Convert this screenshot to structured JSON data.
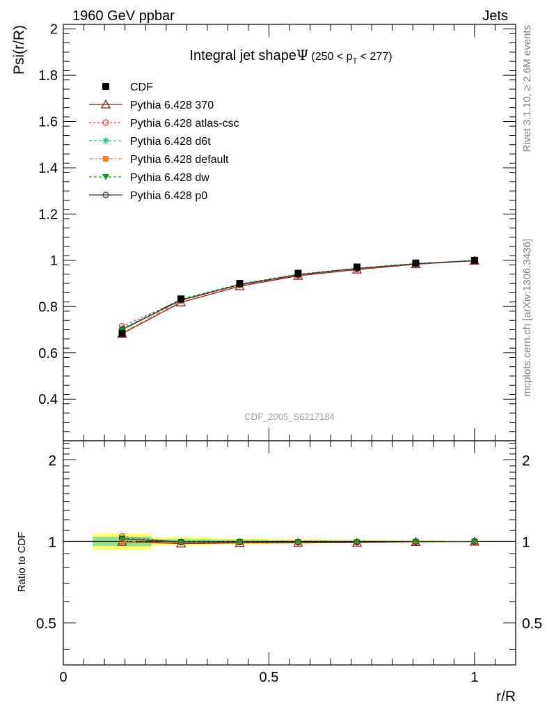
{
  "header": {
    "left": "1960 GeV ppbar",
    "right": "Jets"
  },
  "side_labels": {
    "rivet": "Rivet 3.1.10, ≥ 2.6M events",
    "mcplots": "mcplots.cern.ch [arXiv:1306.3436]"
  },
  "chart_data": [
    {
      "type": "line",
      "title_prefix": "Integral jet shape",
      "title_symbol": "Ψ",
      "title_range": "(250 < p",
      "title_range_sub": "T",
      "title_range_end": " < 277)",
      "ylabel": "Psi(r/R)",
      "xlim": [
        0,
        1.1
      ],
      "ylim": [
        0.22,
        2.02
      ],
      "yticks": [
        0.4,
        0.6,
        0.8,
        1,
        1.2,
        1.4,
        1.6,
        1.8,
        2
      ],
      "ytick_labels": [
        "0.4",
        "0.6",
        "0.8",
        "1",
        "1.2",
        "1.4",
        "1.6",
        "1.8",
        "2"
      ],
      "watermark": "CDF_2005_S6217184",
      "legend_position": "top-left",
      "x": [
        0.143,
        0.286,
        0.429,
        0.571,
        0.714,
        0.857,
        1.0
      ],
      "series": [
        {
          "name": "CDF",
          "values": [
            0.685,
            0.833,
            0.9,
            0.944,
            0.971,
            0.988,
            1.0
          ],
          "color": "#000000",
          "marker": "square",
          "dash": "none"
        },
        {
          "name": "Pythia 6.428 370",
          "values": [
            0.683,
            0.818,
            0.888,
            0.933,
            0.96,
            0.983,
            0.998
          ],
          "color": "#8b1a1a",
          "marker": "triangle-open",
          "dash": "none"
        },
        {
          "name": "Pythia 6.428 atlas-csc",
          "values": [
            0.715,
            0.828,
            0.893,
            0.935,
            0.962,
            0.984,
            0.998
          ],
          "color": "#e8304a",
          "marker": "circle-open",
          "dash": "3,3"
        },
        {
          "name": "Pythia 6.428 d6t",
          "values": [
            0.705,
            0.832,
            0.898,
            0.94,
            0.966,
            0.986,
            0.999
          ],
          "color": "#1fbf8f",
          "marker": "star",
          "dash": "4,3"
        },
        {
          "name": "Pythia 6.428 default",
          "values": [
            0.686,
            0.825,
            0.893,
            0.937,
            0.964,
            0.985,
            0.998
          ],
          "color": "#ff7f27",
          "marker": "square-small",
          "dash": "6,3,2,3"
        },
        {
          "name": "Pythia 6.428 dw",
          "values": [
            0.702,
            0.83,
            0.897,
            0.939,
            0.965,
            0.986,
            0.999
          ],
          "color": "#1a9a1a",
          "marker": "triangle-down",
          "dash": "4,3"
        },
        {
          "name": "Pythia 6.428 p0",
          "values": [
            0.7,
            0.828,
            0.895,
            0.938,
            0.965,
            0.985,
            0.999
          ],
          "color": "#333333",
          "marker": "circle-open",
          "dash": "none"
        }
      ]
    },
    {
      "type": "line",
      "xlabel": "r/R",
      "ylabel": "Ratio to CDF",
      "xlim": [
        0,
        1.1
      ],
      "ylim": [
        0.35,
        2.35
      ],
      "log_y": true,
      "yticks": [
        0.5,
        1,
        2
      ],
      "ytick_labels": [
        "0.5",
        "1",
        "2"
      ],
      "xticks": [
        0,
        0.5,
        1
      ],
      "xtick_labels": [
        "0",
        "0.5",
        "1"
      ],
      "x": [
        0.143,
        0.286,
        0.429,
        0.571,
        0.714,
        0.857,
        1.0
      ],
      "band": {
        "x_edges": [
          0.071,
          0.214,
          0.357,
          0.5,
          0.643,
          0.786,
          0.929,
          1.071
        ],
        "stat": [
          0.04,
          0.018,
          0.012,
          0.008,
          0.006,
          0.004,
          0.002
        ],
        "total": [
          0.07,
          0.035,
          0.025,
          0.018,
          0.012,
          0.008,
          0.004
        ],
        "stat_color": "#8fe58f",
        "total_color": "#ffff66"
      },
      "series": [
        {
          "name": "Pythia 6.428 370",
          "values": [
            0.997,
            0.982,
            0.987,
            0.988,
            0.989,
            0.995,
            0.998
          ]
        },
        {
          "name": "Pythia 6.428 atlas-csc",
          "values": [
            1.044,
            0.994,
            0.992,
            0.99,
            0.991,
            0.996,
            0.998
          ]
        },
        {
          "name": "Pythia 6.428 d6t",
          "values": [
            1.029,
            0.999,
            0.998,
            0.996,
            0.995,
            0.998,
            0.999
          ]
        },
        {
          "name": "Pythia 6.428 default",
          "values": [
            1.001,
            0.99,
            0.992,
            0.993,
            0.993,
            0.997,
            0.998
          ]
        },
        {
          "name": "Pythia 6.428 dw",
          "values": [
            1.025,
            0.996,
            0.997,
            0.995,
            0.994,
            0.998,
            0.999
          ]
        },
        {
          "name": "Pythia 6.428 p0",
          "values": [
            1.022,
            0.994,
            0.994,
            0.994,
            0.994,
            0.997,
            0.999
          ]
        }
      ]
    }
  ]
}
